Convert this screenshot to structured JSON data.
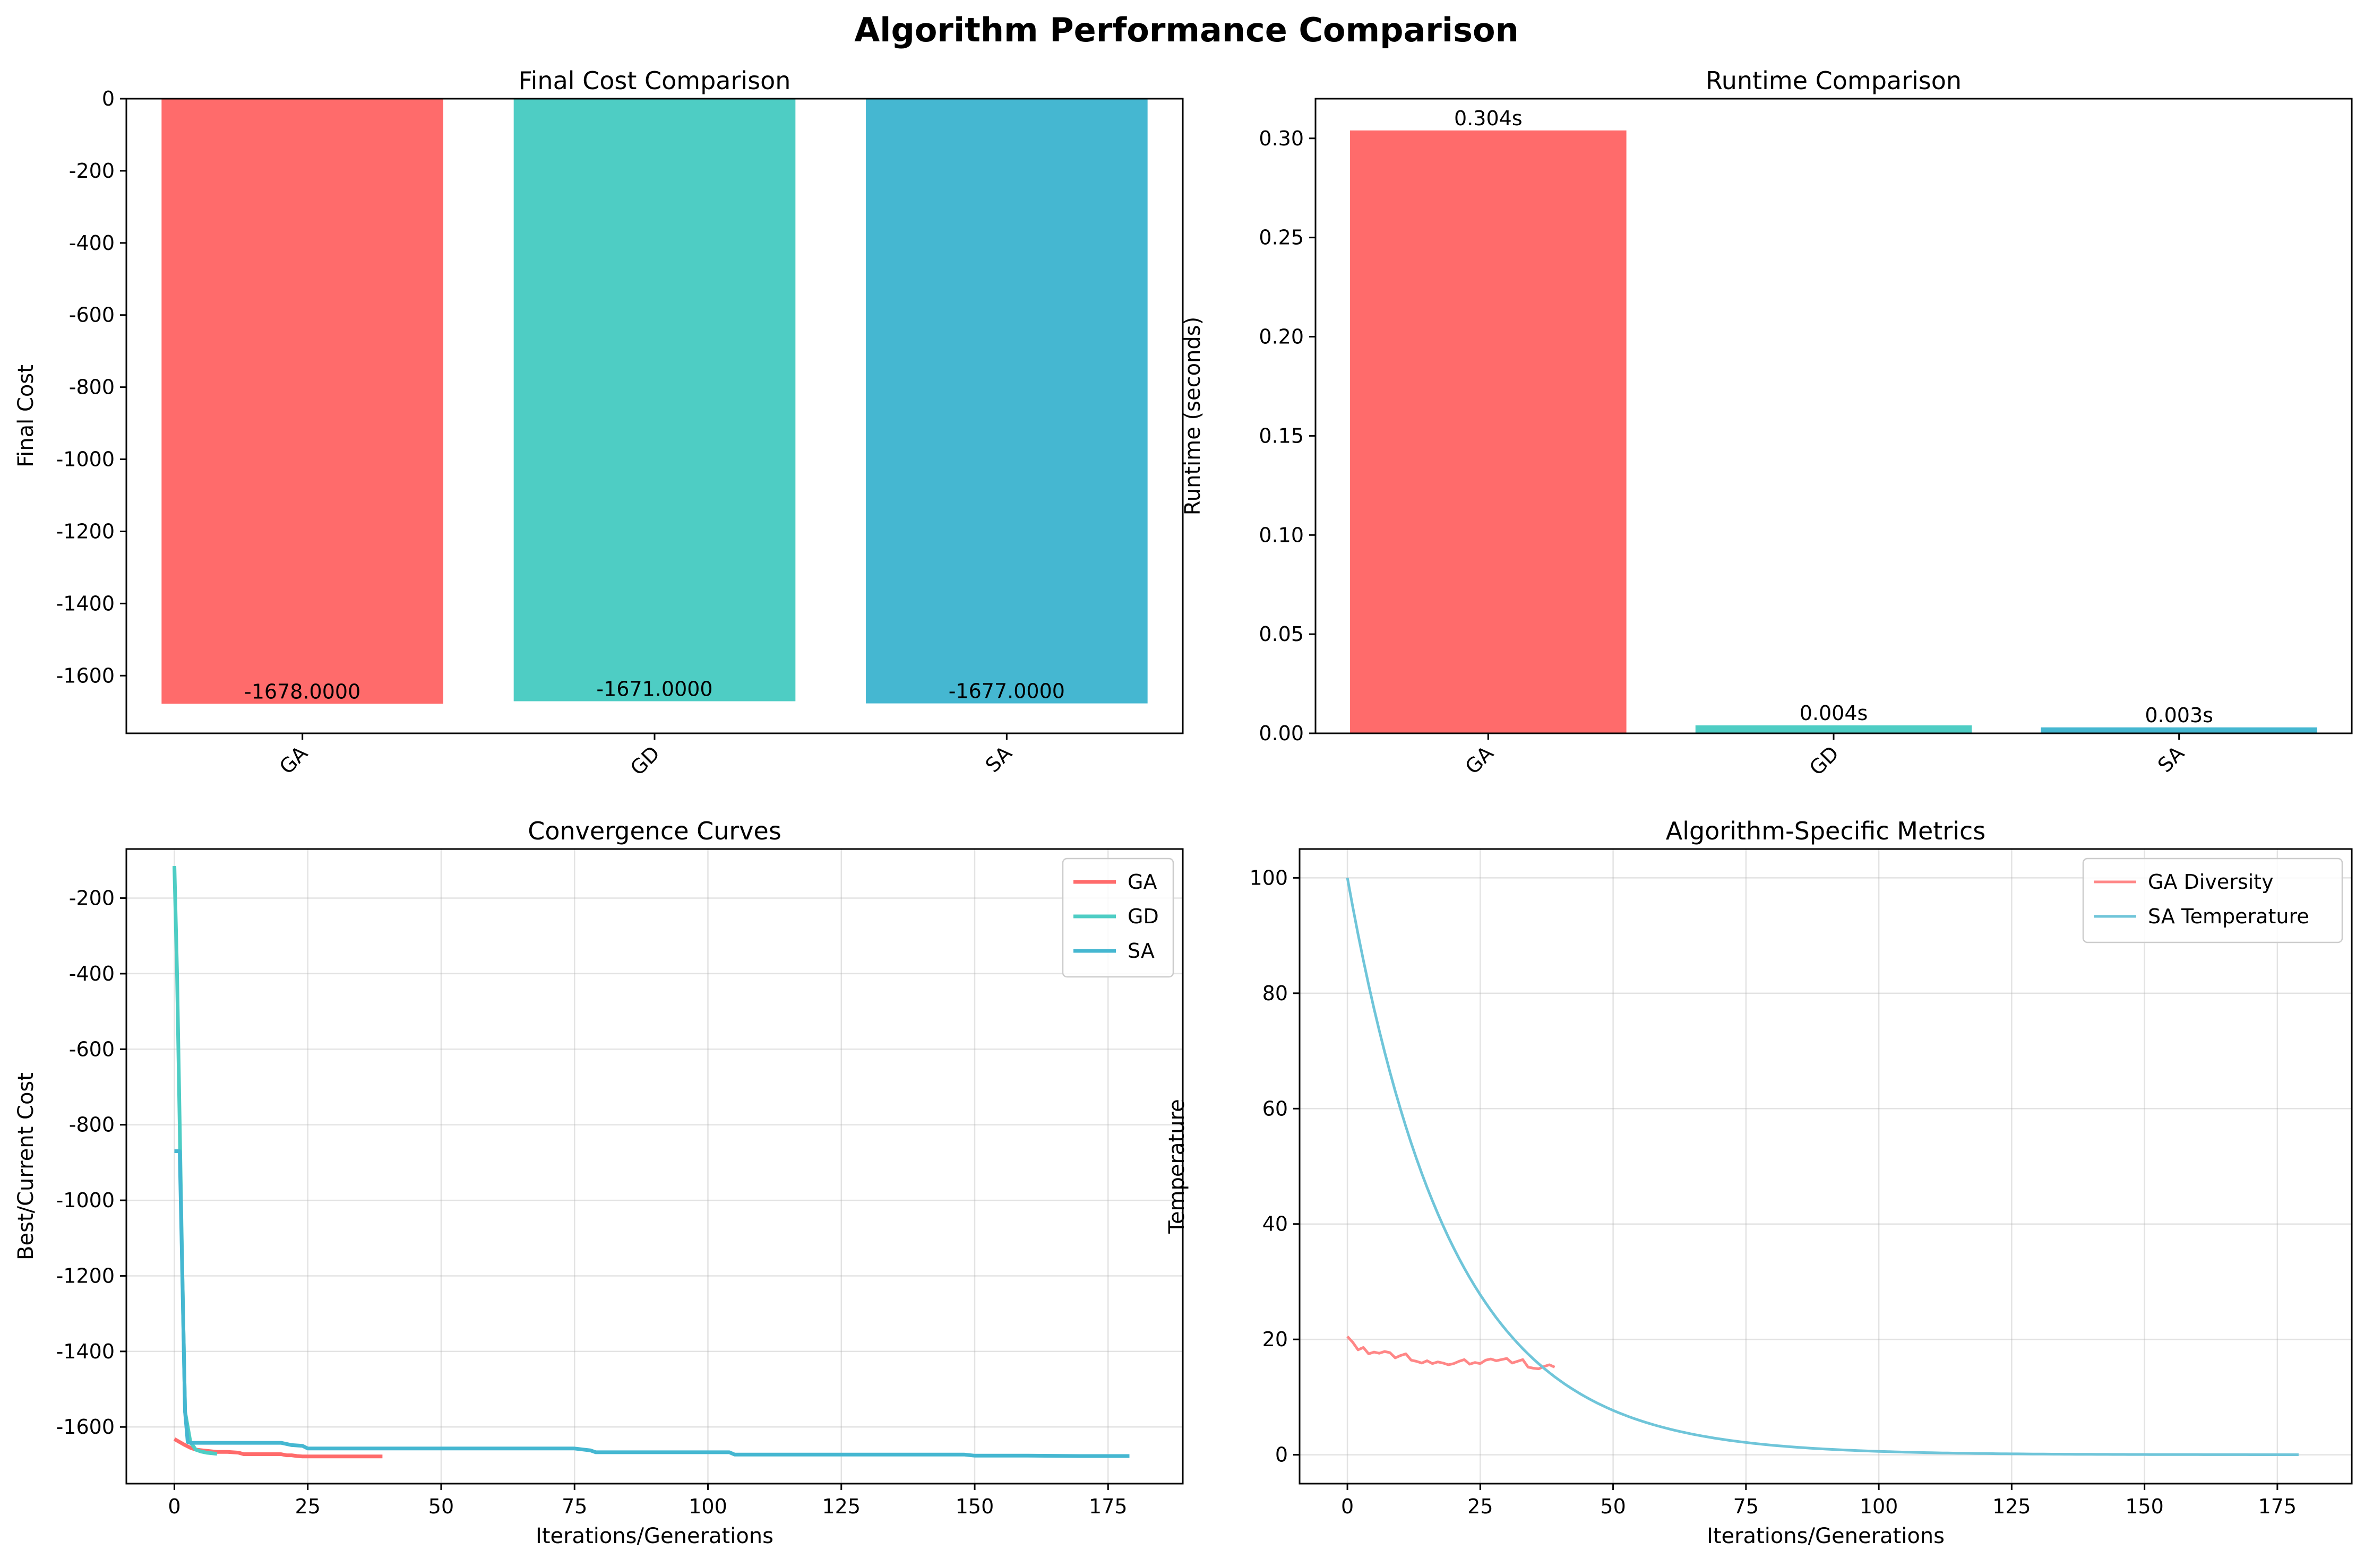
{
  "figure_title": "Algorithm Performance Comparison",
  "colors": {
    "GA": "#ff6b6b",
    "GD": "#4ecdc4",
    "SA": "#45b7d1"
  },
  "chart_data": [
    {
      "id": "final_cost",
      "type": "bar",
      "title": "Final Cost Comparison",
      "xlabel": "",
      "ylabel": "Final Cost",
      "categories": [
        "GA",
        "GD",
        "SA"
      ],
      "values": [
        -1678,
        -1671,
        -1677
      ],
      "data_labels": [
        "-1678.0000",
        "-1671.0000",
        "-1677.0000"
      ],
      "ylim": [
        -1760,
        0
      ],
      "yticks": [
        0,
        -200,
        -400,
        -600,
        -800,
        -1000,
        -1200,
        -1400,
        -1600
      ],
      "ytick_labels": [
        "0",
        "-200",
        "-400",
        "-600",
        "-800",
        "-1000",
        "-1200",
        "-1400",
        "-1600"
      ],
      "grid": false
    },
    {
      "id": "runtime",
      "type": "bar",
      "title": "Runtime Comparison",
      "xlabel": "",
      "ylabel": "Runtime (seconds)",
      "categories": [
        "GA",
        "GD",
        "SA"
      ],
      "values": [
        0.304,
        0.004,
        0.003
      ],
      "data_labels": [
        "0.304s",
        "0.004s",
        "0.003s"
      ],
      "ylim": [
        0,
        0.32
      ],
      "yticks": [
        0,
        0.05,
        0.1,
        0.15,
        0.2,
        0.25,
        0.3
      ],
      "ytick_labels": [
        "0.00",
        "0.05",
        "0.10",
        "0.15",
        "0.20",
        "0.25",
        "0.30"
      ],
      "grid": false
    },
    {
      "id": "convergence",
      "type": "line",
      "title": "Convergence Curves",
      "xlabel": "Iterations/Generations",
      "ylabel": "Best/Current Cost",
      "xlim": [
        -9,
        189
      ],
      "ylim": [
        -1750,
        -70
      ],
      "xticks": [
        0,
        25,
        50,
        75,
        100,
        125,
        150,
        175
      ],
      "xtick_labels": [
        "0",
        "25",
        "50",
        "75",
        "100",
        "125",
        "150",
        "175"
      ],
      "yticks": [
        -200,
        -400,
        -600,
        -800,
        -1000,
        -1200,
        -1400,
        -1600
      ],
      "ytick_labels": [
        "-200",
        "-400",
        "-600",
        "-800",
        "-1000",
        "-1200",
        "-1400",
        "-1600"
      ],
      "grid": true,
      "legend": "top-right",
      "series": [
        {
          "name": "GA",
          "x": [
            0,
            1,
            2,
            3,
            4,
            6,
            8,
            10,
            12,
            13,
            15,
            17,
            19,
            20,
            21,
            22,
            23,
            24,
            26,
            28,
            30,
            32,
            34,
            36,
            39
          ],
          "y": [
            -1632,
            -1640,
            -1648,
            -1655,
            -1660,
            -1663,
            -1666,
            -1666,
            -1668,
            -1672,
            -1672,
            -1672,
            -1672,
            -1672,
            -1675,
            -1675,
            -1677,
            -1678,
            -1678,
            -1678,
            -1678,
            -1678,
            -1678,
            -1678,
            -1678
          ]
        },
        {
          "name": "GD",
          "x": [
            0,
            0.5,
            1,
            1.5,
            2,
            3,
            4,
            5,
            6,
            8
          ],
          "y": [
            -115,
            -400,
            -800,
            -1200,
            -1560,
            -1640,
            -1660,
            -1665,
            -1668,
            -1671
          ]
        },
        {
          "name": "SA",
          "x": [
            0,
            1,
            1.5,
            2,
            2.5,
            3,
            10,
            20,
            22,
            24,
            25,
            30,
            50,
            75,
            78,
            79,
            90,
            104,
            105,
            120,
            148,
            150,
            160,
            170,
            179
          ],
          "y": [
            -870,
            -870,
            -1200,
            -1560,
            -1640,
            -1642,
            -1642,
            -1642,
            -1648,
            -1650,
            -1657,
            -1657,
            -1657,
            -1657,
            -1662,
            -1667,
            -1667,
            -1667,
            -1673,
            -1673,
            -1673,
            -1676,
            -1676,
            -1677,
            -1677
          ]
        }
      ]
    },
    {
      "id": "algorithm_metrics",
      "type": "line",
      "title": "Algorithm-Specific Metrics",
      "xlabel": "Iterations/Generations",
      "ylabel": "Temperature",
      "xlim": [
        -9,
        189
      ],
      "ylim": [
        -5,
        105
      ],
      "xticks": [
        0,
        25,
        50,
        75,
        100,
        125,
        150,
        175
      ],
      "xtick_labels": [
        "0",
        "25",
        "50",
        "75",
        "100",
        "125",
        "150",
        "175"
      ],
      "yticks": [
        0,
        20,
        40,
        60,
        80,
        100
      ],
      "ytick_labels": [
        "0",
        "20",
        "40",
        "60",
        "80",
        "100"
      ],
      "grid": true,
      "legend": "top-right",
      "series": [
        {
          "name": "GA Diversity",
          "x": [
            0,
            1,
            2,
            3,
            4,
            5,
            6,
            7,
            8,
            9,
            10,
            11,
            12,
            13,
            14,
            15,
            16,
            17,
            18,
            19,
            20,
            21,
            22,
            23,
            24,
            25,
            26,
            27,
            28,
            29,
            30,
            31,
            32,
            33,
            34,
            35,
            36,
            37,
            38,
            39
          ],
          "y": [
            20.5,
            19.5,
            18.2,
            18.6,
            17.5,
            17.8,
            17.6,
            17.9,
            17.7,
            16.8,
            17.2,
            17.5,
            16.4,
            16.2,
            15.9,
            16.3,
            15.8,
            16.1,
            15.9,
            15.6,
            15.8,
            16.2,
            16.5,
            15.7,
            16.0,
            15.8,
            16.4,
            16.6,
            16.3,
            16.5,
            16.7,
            15.9,
            16.2,
            16.5,
            15.2,
            15.0,
            14.9,
            15.3,
            15.6,
            15.2
          ],
          "color": "#ff8787"
        },
        {
          "name": "SA Temperature",
          "type": "exponential_decay",
          "y0": 100,
          "rate": 0.95,
          "x_range": [
            0,
            179
          ],
          "color": "#6fc5d9"
        }
      ]
    }
  ]
}
